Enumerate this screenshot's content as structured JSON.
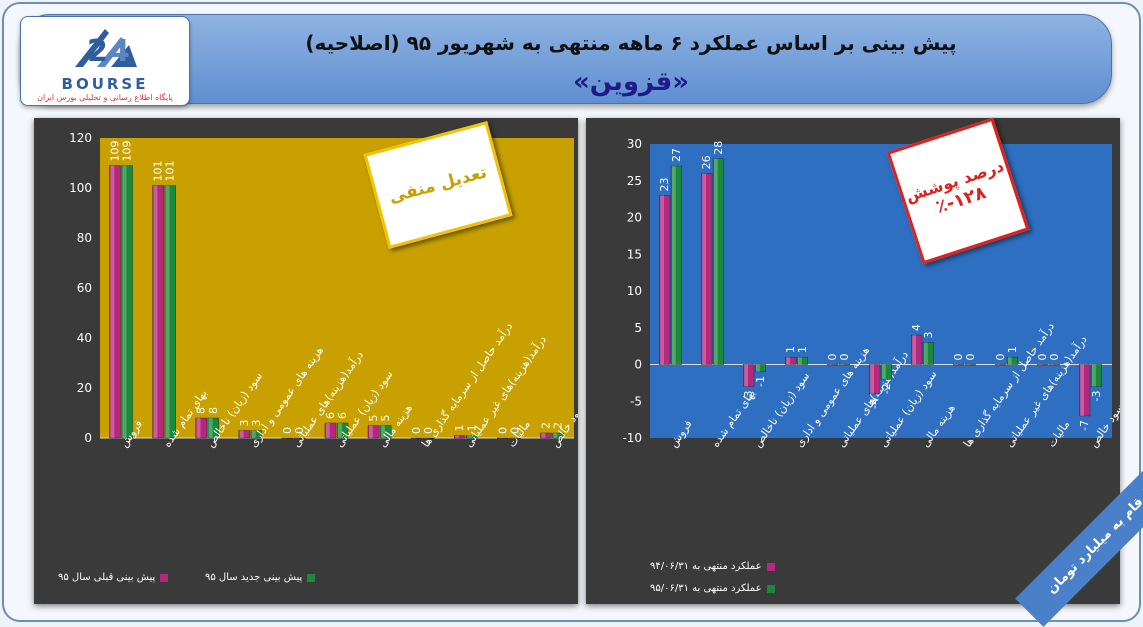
{
  "header": {
    "title_line1": "پیش بینی بر اساس عملکرد ۶ ماهه منتهی به شهریور ۹۵ (اصلاحیه)",
    "title_line2": "«قزوین»"
  },
  "logo": {
    "word": "BOURSE",
    "subtitle": "پایگاه اطلاع رسانی و تحلیلی بورس ایران"
  },
  "colors": {
    "magenta": "#b5287d",
    "green": "#1a8a3a",
    "gold": "#c8a100",
    "blue": "#2e6fc2"
  },
  "notes": {
    "left": "تعدیل منفی",
    "right_line1": "درصد پوشش",
    "right_line2": "۱۲۸-٪"
  },
  "corner_label": "ارقام به میلیارد تومان",
  "chart_data": [
    {
      "type": "bar",
      "categories": [
        "فروش",
        "بهای تمام شده",
        "سود (زیان) ناخالص",
        "هزینه های عمومی و اداری",
        "درآمد(هزینه)های عملیاتی",
        "سود (زیان) عملیاتی",
        "هزینه مالی",
        "درآمد حاصل از سرمایه گذاری ها",
        "درآمد(هزینه)های غیر عملیاتی",
        "مالیات",
        "سود خالص"
      ],
      "series": [
        {
          "name": "پیش بینی قبلی سال ۹۵",
          "values": [
            109,
            101,
            8,
            3,
            0,
            6,
            5,
            0,
            1,
            0,
            2
          ]
        },
        {
          "name": "پیش بینی جدید سال ۹۵",
          "values": [
            109,
            101,
            8,
            3,
            0,
            6,
            5,
            0,
            1,
            0,
            2
          ]
        }
      ],
      "ylim": [
        0,
        120
      ],
      "yticks": [
        0,
        20,
        40,
        60,
        80,
        100,
        120
      ],
      "grid": false,
      "legend": "bottom"
    },
    {
      "type": "bar",
      "categories": [
        "فروش",
        "بهای تمام شده",
        "سود (زیان) ناخالص",
        "هزینه های عمومی و اداری",
        "درآمد(هزینه)های عملیاتی",
        "سود (زیان) عملیاتی",
        "هزینه مالی",
        "درآمد حاصل از سرمایه گذاری ها",
        "درآمد(هزینه)های غیر عملیاتی",
        "مالیات",
        "سود خالص"
      ],
      "series": [
        {
          "name": "عملکرد منتهی به ۹۴/۰۶/۳۱",
          "values": [
            23,
            26,
            -3,
            1,
            0,
            -4,
            4,
            0,
            0,
            0,
            -7
          ]
        },
        {
          "name": "عملکرد منتهی به ۹۵/۰۶/۳۱",
          "values": [
            27,
            28,
            -1,
            1,
            0,
            -2,
            3,
            0,
            1,
            0,
            -3
          ]
        }
      ],
      "ylim": [
        -10,
        30
      ],
      "yticks": [
        -10,
        -5,
        0,
        5,
        10,
        15,
        20,
        25,
        30
      ],
      "grid": false,
      "legend": "bottom"
    }
  ]
}
